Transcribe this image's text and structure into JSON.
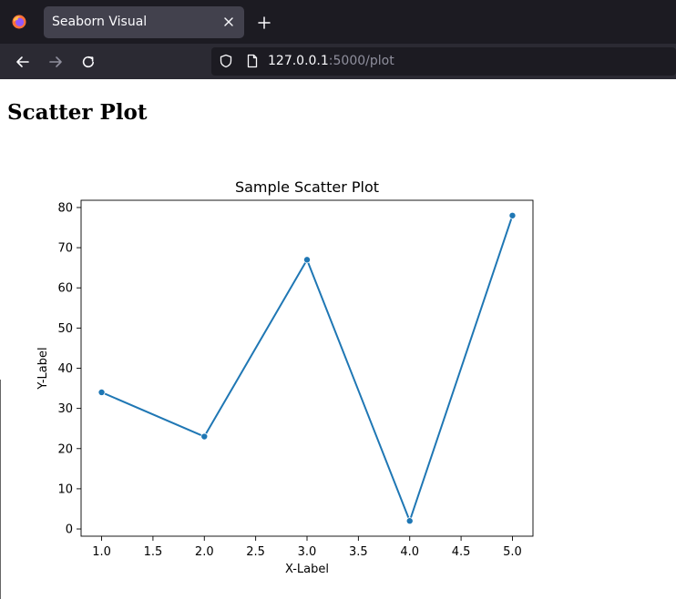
{
  "browser": {
    "tab": {
      "title": "Seaborn Visual"
    },
    "url": {
      "host": "127.0.0.1",
      "rest": ":5000/plot"
    },
    "icons": {
      "logo": "firefox-icon",
      "close": "close-icon",
      "new_tab": "plus-icon",
      "back": "back-arrow-icon",
      "forward": "forward-arrow-icon",
      "reload": "reload-icon",
      "shield": "shield-icon",
      "page": "page-icon"
    }
  },
  "page": {
    "heading": "Scatter Plot"
  },
  "chart_data": {
    "type": "line",
    "title": "Sample Scatter Plot",
    "xlabel": "X-Label",
    "ylabel": "Y-Label",
    "x": [
      1,
      2,
      3,
      4,
      5
    ],
    "series": [
      {
        "values": [
          34,
          23,
          67,
          2,
          78
        ],
        "color": "#1f77b4",
        "markers": true
      }
    ],
    "xlim": [
      0.8,
      5.2
    ],
    "ylim": [
      -1.8,
      81.8
    ],
    "xticks": [
      "1.0",
      "1.5",
      "2.0",
      "2.5",
      "3.0",
      "3.5",
      "4.0",
      "4.5",
      "5.0"
    ],
    "yticks": [
      "0",
      "10",
      "20",
      "30",
      "40",
      "50",
      "60",
      "70",
      "80"
    ],
    "grid": false,
    "legend": false
  }
}
